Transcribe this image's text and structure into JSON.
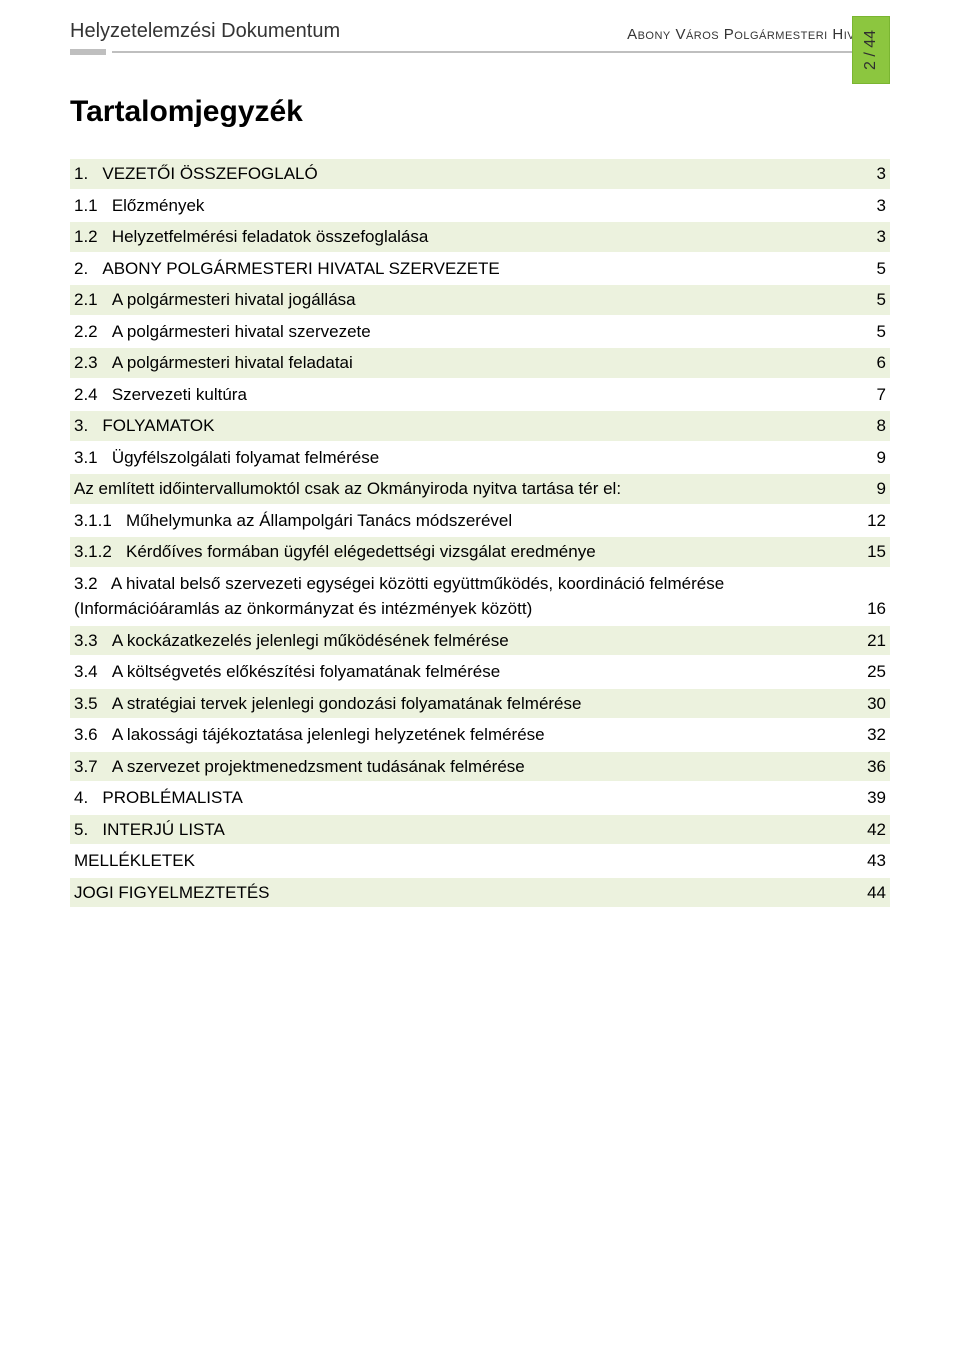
{
  "colors": {
    "highlight": "#ecf2de",
    "badge_bg": "#8cc63f",
    "badge_border": "#7ab531",
    "rule": "#bfbfbf",
    "text": "#000000",
    "header_text": "#343434"
  },
  "header": {
    "left": "Helyzetelemzési Dokumentum",
    "center": "Abony Város Polgármesteri Hivatala",
    "page_badge": "2 / 44"
  },
  "toc_title": "Tartalomjegyzék",
  "toc": [
    {
      "num": "1.",
      "text": "VEZETŐI ÖSSZEFOGLALÓ",
      "page": "3",
      "hl": true
    },
    {
      "num": "1.1",
      "text": "Előzmények",
      "page": "3",
      "hl": false
    },
    {
      "num": "1.2",
      "text": "Helyzetfelmérési feladatok összefoglalása",
      "page": "3",
      "hl": true
    },
    {
      "num": "2.",
      "text": "ABONY POLGÁRMESTERI HIVATAL SZERVEZETE",
      "page": "5",
      "hl": false
    },
    {
      "num": "2.1",
      "text": "A polgármesteri hivatal jogállása",
      "page": "5",
      "hl": true
    },
    {
      "num": "2.2",
      "text": "A polgármesteri hivatal szervezete",
      "page": "5",
      "hl": false
    },
    {
      "num": "2.3",
      "text": "A polgármesteri hivatal feladatai",
      "page": "6",
      "hl": true
    },
    {
      "num": "2.4",
      "text": "Szervezeti kultúra",
      "page": "7",
      "hl": false
    },
    {
      "num": "3.",
      "text": "FOLYAMATOK",
      "page": "8",
      "hl": true
    },
    {
      "num": "3.1",
      "text": "Ügyfélszolgálati folyamat felmérése",
      "page": "9",
      "hl": false
    },
    {
      "num": "",
      "text": "Az említett időintervallumoktól csak az Okmányiroda nyitva tartása tér el:",
      "page": "9",
      "hl": true
    },
    {
      "num": "3.1.1",
      "text": "Műhelymunka az Állampolgári Tanács módszerével",
      "page": "12",
      "hl": false
    },
    {
      "num": "3.1.2",
      "text": "Kérdőíves formában ügyfél elégedettségi vizsgálat eredménye",
      "page": "15",
      "hl": true
    },
    {
      "num": "3.2",
      "text": "A hivatal belső szervezeti egységei közötti együttműködés, koordináció felmérése (Információáramlás az önkormányzat és intézmények között)",
      "page": "16",
      "hl": false,
      "multiline": true
    },
    {
      "num": "3.3",
      "text": "A kockázatkezelés jelenlegi működésének felmérése",
      "page": "21",
      "hl": true
    },
    {
      "num": "3.4",
      "text": "A költségvetés előkészítési folyamatának felmérése",
      "page": "25",
      "hl": false
    },
    {
      "num": "3.5",
      "text": "A stratégiai tervek jelenlegi gondozási folyamatának felmérése",
      "page": "30",
      "hl": true
    },
    {
      "num": "3.6",
      "text": "A lakossági tájékoztatása jelenlegi helyzetének felmérése",
      "page": "32",
      "hl": false
    },
    {
      "num": "3.7",
      "text": "A szervezet projektmenedzsment tudásának felmérése",
      "page": "36",
      "hl": true
    },
    {
      "num": "4.",
      "text": "PROBLÉMALISTA",
      "page": "39",
      "hl": false
    },
    {
      "num": "5.",
      "text": "INTERJÚ LISTA",
      "page": "42",
      "hl": true
    },
    {
      "num": "",
      "text": "MELLÉKLETEK",
      "page": "43",
      "hl": false
    },
    {
      "num": "",
      "text": "JOGI FIGYELMEZTETÉS",
      "page": "44",
      "hl": true
    }
  ]
}
